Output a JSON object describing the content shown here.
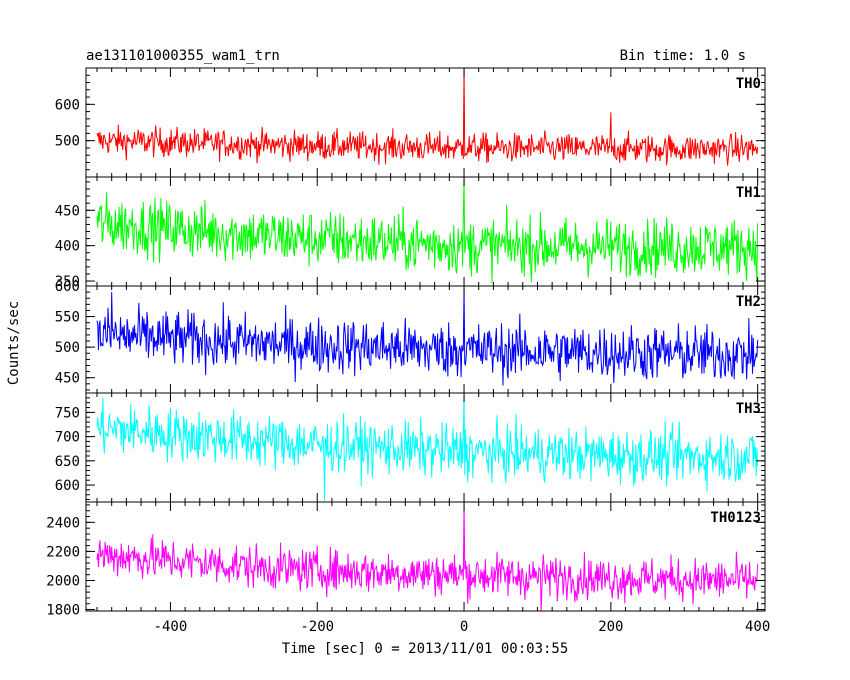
{
  "chart_data": {
    "type": "line",
    "title_left": "ae131101000355_wam1_trn",
    "title_right": "Bin time: 1.0 s",
    "xlabel": "Time [sec] 0 = 2013/11/01 00:03:55",
    "ylabel": "Counts/sec",
    "xlim": [
      -515,
      410
    ],
    "x_ticks": [
      -400,
      -200,
      0,
      200,
      400
    ],
    "x_data_range": [
      -500,
      400
    ],
    "panels": [
      {
        "name": "TH0",
        "color": "#ff0000",
        "ylim": [
          400,
          700
        ],
        "y_ticks": [
          500,
          600
        ],
        "baseline": {
          "x": [
            -500,
            -250,
            0,
            250,
            400
          ],
          "y": [
            500,
            488,
            480,
            478,
            478
          ]
        },
        "noise_amplitude": 22,
        "spikes": [
          {
            "x": 0,
            "y": 705
          },
          {
            "x": 200,
            "y": 578
          }
        ]
      },
      {
        "name": "TH1",
        "color": "#00ff00",
        "ylim": [
          343,
          497
        ],
        "y_ticks": [
          350,
          400,
          450
        ],
        "baseline": {
          "x": [
            -500,
            -250,
            0,
            250,
            400
          ],
          "y": [
            432,
            412,
            400,
            398,
            398
          ]
        },
        "noise_amplitude": 22,
        "spikes": [
          {
            "x": 0,
            "y": 497
          }
        ]
      },
      {
        "name": "TH2",
        "color": "#0000ff",
        "ylim": [
          425,
          600
        ],
        "y_ticks": [
          450,
          500,
          550,
          600
        ],
        "baseline": {
          "x": [
            -500,
            -250,
            0,
            250,
            400
          ],
          "y": [
            520,
            505,
            495,
            490,
            488
          ]
        },
        "noise_amplitude": 25,
        "spikes": [
          {
            "x": -480,
            "y": 590
          },
          {
            "x": 0,
            "y": 598
          }
        ]
      },
      {
        "name": "TH3",
        "color": "#00ffff",
        "ylim": [
          565,
          790
        ],
        "y_ticks": [
          600,
          650,
          700,
          750
        ],
        "baseline": {
          "x": [
            -500,
            -250,
            0,
            250,
            400
          ],
          "y": [
            718,
            688,
            668,
            660,
            658
          ]
        },
        "noise_amplitude": 30,
        "spikes": [
          {
            "x": 0,
            "y": 790
          },
          {
            "x": -190,
            "y": 567
          }
        ]
      },
      {
        "name": "TH0123",
        "color": "#ff00ff",
        "ylim": [
          1790,
          2540
        ],
        "y_ticks": [
          1800,
          2000,
          2200,
          2400
        ],
        "baseline": {
          "x": [
            -500,
            -250,
            0,
            250,
            400
          ],
          "y": [
            2180,
            2080,
            2040,
            2010,
            2000
          ]
        },
        "noise_amplitude": 80,
        "spikes": [
          {
            "x": 0,
            "y": 2540
          },
          {
            "x": 105,
            "y": 1790
          }
        ]
      }
    ]
  }
}
